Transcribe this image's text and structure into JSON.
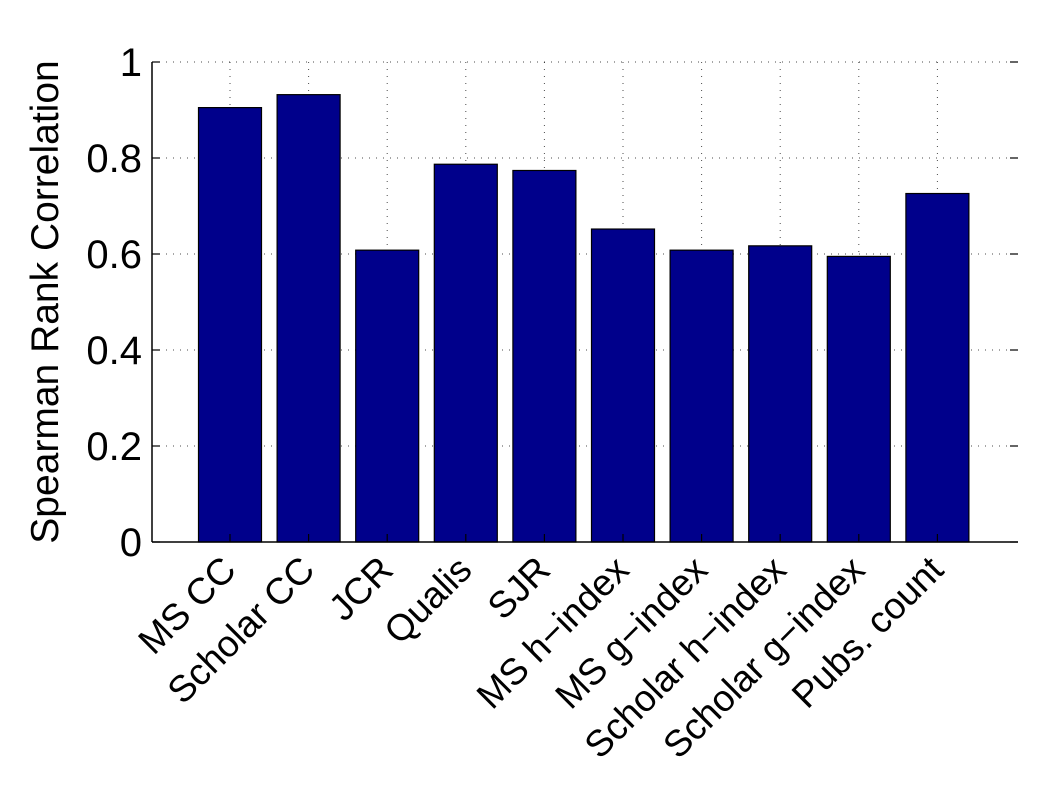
{
  "chart_data": {
    "type": "bar",
    "title": "",
    "xlabel": "",
    "ylabel": "Spearman Rank Correlation",
    "categories": [
      "MS CC",
      "Scholar CC",
      "JCR",
      "Qualis",
      "SJR",
      "MS h−index",
      "MS g−index",
      "Scholar h−index",
      "Scholar g−index",
      "Pubs. count"
    ],
    "values": [
      0.905,
      0.932,
      0.608,
      0.787,
      0.774,
      0.652,
      0.608,
      0.617,
      0.595,
      0.726
    ],
    "ylim": [
      0,
      1
    ],
    "yticks": [
      0,
      0.2,
      0.4,
      0.6,
      0.8,
      1
    ],
    "ytick_labels": [
      "0",
      "0.2",
      "0.4",
      "0.6",
      "0.8",
      "1"
    ],
    "grid": true,
    "bar_color": "#00008B"
  }
}
